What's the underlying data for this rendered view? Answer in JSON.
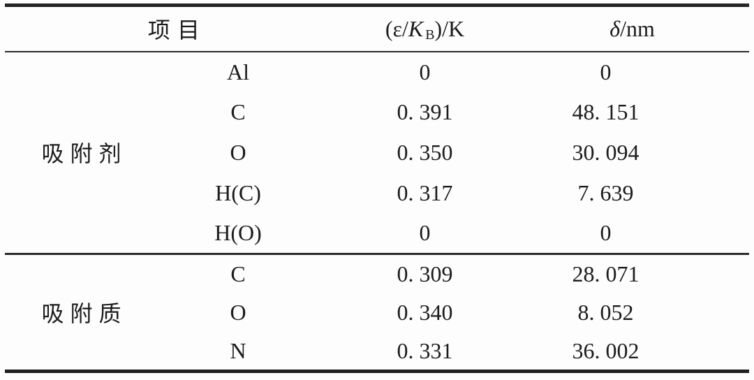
{
  "table": {
    "header": {
      "item": "项目",
      "eps": {
        "pre": "(ε/",
        "k": "K",
        "sub": "B",
        "post": ")/K"
      },
      "delta": {
        "d": "δ",
        "post": "/nm"
      }
    },
    "groups": [
      {
        "label": "吸附剂",
        "rows": [
          {
            "element": "Al",
            "eps": "0",
            "delta": "0"
          },
          {
            "element": "C",
            "eps": "0. 391",
            "delta": "48. 151"
          },
          {
            "element": "O",
            "eps": "0. 350",
            "delta": "30. 094"
          },
          {
            "element": "H(C)",
            "eps": "0. 317",
            "delta": "7. 639"
          },
          {
            "element": "H(O)",
            "eps": "0",
            "delta": "0"
          }
        ]
      },
      {
        "label": "吸附质",
        "rows": [
          {
            "element": "C",
            "eps": "0. 309",
            "delta": "28. 071"
          },
          {
            "element": "O",
            "eps": "0. 340",
            "delta": "8. 052"
          },
          {
            "element": "N",
            "eps": "0. 331",
            "delta": "36. 002"
          }
        ]
      }
    ]
  }
}
